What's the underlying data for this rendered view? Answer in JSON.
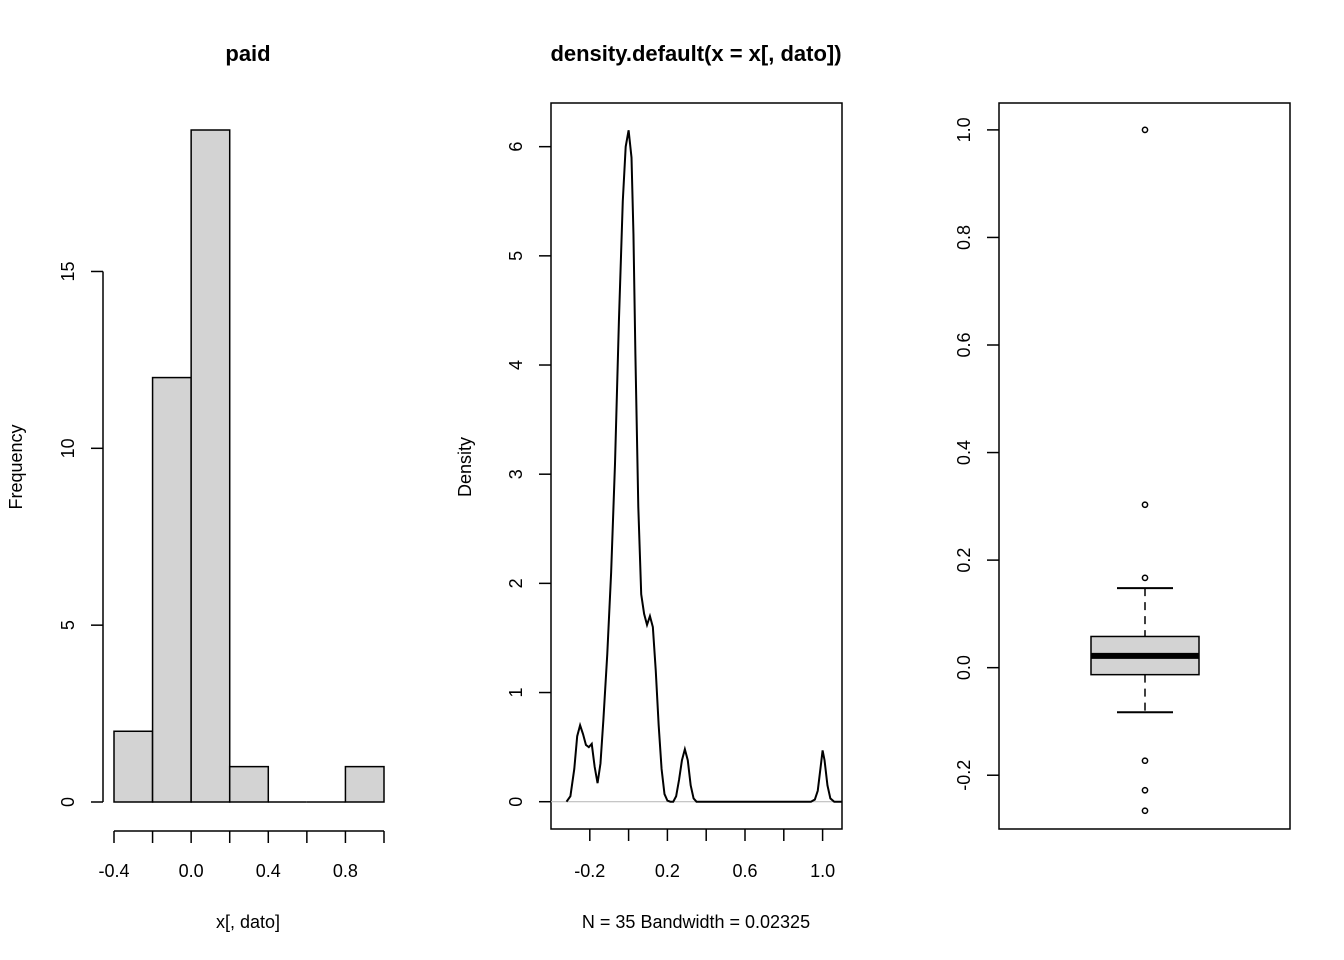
{
  "chart_data": [
    {
      "type": "bar",
      "subtype": "histogram",
      "title": "paid",
      "xlabel": "x[, dato]",
      "ylabel": "Frequency",
      "bins": [
        {
          "from": -0.4,
          "to": -0.2,
          "count": 2
        },
        {
          "from": -0.2,
          "to": 0.0,
          "count": 12
        },
        {
          "from": 0.0,
          "to": 0.2,
          "count": 19
        },
        {
          "from": 0.2,
          "to": 0.4,
          "count": 1
        },
        {
          "from": 0.4,
          "to": 0.6,
          "count": 0
        },
        {
          "from": 0.6,
          "to": 0.8,
          "count": 0
        },
        {
          "from": 0.8,
          "to": 1.0,
          "count": 1
        }
      ],
      "xlim": [
        -0.4,
        1.0
      ],
      "ylim": [
        0,
        19
      ],
      "x_ticks": [
        -0.4,
        -0.2,
        0.0,
        0.2,
        0.4,
        0.6,
        0.8,
        1.0
      ],
      "x_tick_labels": [
        "-0.4",
        "0.0",
        "0.4",
        "0.8"
      ],
      "x_tick_label_values": [
        -0.4,
        0.0,
        0.4,
        0.8
      ],
      "y_ticks": [
        0,
        5,
        10,
        15
      ],
      "y_tick_labels": [
        "0",
        "5",
        "10",
        "15"
      ],
      "bar_color": "#d3d3d3"
    },
    {
      "type": "line",
      "subtype": "density",
      "title": "density.default(x = x[, dato])",
      "xlabel": "N = 35   Bandwidth = 0.02325",
      "ylabel": "Density",
      "x": [
        -0.32,
        -0.3,
        -0.28,
        -0.265,
        -0.25,
        -0.235,
        -0.22,
        -0.205,
        -0.19,
        -0.175,
        -0.16,
        -0.145,
        -0.13,
        -0.11,
        -0.09,
        -0.07,
        -0.05,
        -0.03,
        -0.015,
        0.0,
        0.015,
        0.025,
        0.035,
        0.05,
        0.065,
        0.08,
        0.095,
        0.11,
        0.125,
        0.14,
        0.155,
        0.17,
        0.185,
        0.2,
        0.215,
        0.23,
        0.245,
        0.26,
        0.275,
        0.29,
        0.305,
        0.32,
        0.335,
        0.35,
        0.37,
        0.4,
        0.5,
        0.6,
        0.7,
        0.8,
        0.9,
        0.94,
        0.96,
        0.975,
        0.99,
        1.0,
        1.01,
        1.025,
        1.04,
        1.06,
        1.1
      ],
      "y": [
        0.0,
        0.05,
        0.3,
        0.6,
        0.7,
        0.62,
        0.52,
        0.5,
        0.53,
        0.32,
        0.17,
        0.35,
        0.75,
        1.35,
        2.1,
        3.1,
        4.4,
        5.5,
        6.0,
        6.15,
        5.9,
        5.2,
        4.1,
        2.7,
        1.9,
        1.72,
        1.62,
        1.7,
        1.6,
        1.2,
        0.7,
        0.3,
        0.07,
        0.01,
        0.0,
        0.0,
        0.05,
        0.2,
        0.38,
        0.48,
        0.38,
        0.15,
        0.03,
        0.0,
        0.0,
        0.0,
        0.0,
        0.0,
        0.0,
        0.0,
        0.0,
        0.0,
        0.02,
        0.1,
        0.32,
        0.47,
        0.38,
        0.15,
        0.03,
        0.0,
        0.0
      ],
      "xlim": [
        -0.4,
        1.1
      ],
      "ylim": [
        -0.25,
        6.4
      ],
      "x_ticks": [
        -0.2,
        0.2,
        0.6,
        1.0
      ],
      "x_tick_labels": [
        "-0.2",
        "0.2",
        "0.6",
        "1.0"
      ],
      "x_minor_ticks": [
        0.0,
        0.4,
        0.8
      ],
      "y_ticks": [
        0,
        1,
        2,
        3,
        4,
        5,
        6
      ],
      "y_tick_labels": [
        "0",
        "1",
        "2",
        "3",
        "4",
        "5",
        "6"
      ],
      "baseline_color": "#bebebe"
    },
    {
      "type": "boxplot",
      "title": "",
      "ylim": [
        -0.3,
        1.05
      ],
      "y_ticks": [
        -0.2,
        0.0,
        0.2,
        0.4,
        0.6,
        0.8,
        1.0
      ],
      "y_tick_labels": [
        "-0.2",
        "0.0",
        "0.2",
        "0.4",
        "0.6",
        "0.8",
        "1.0"
      ],
      "lower_whisker": -0.083,
      "q1": -0.013,
      "median": 0.022,
      "q3": 0.058,
      "upper_whisker": 0.148,
      "outliers": [
        1.0,
        0.303,
        0.167,
        -0.173,
        -0.228,
        -0.266
      ],
      "box_color": "#d3d3d3"
    }
  ]
}
